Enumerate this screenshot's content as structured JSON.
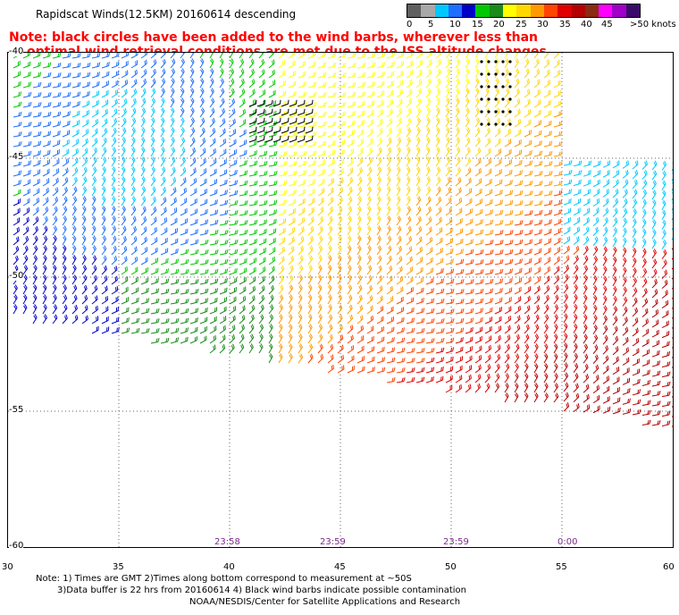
{
  "title": "Rapidscat Winds(12.5KM) 20160614 descending",
  "note": {
    "line1": "Note: black circles have been added to the wind barbs, wherever less than",
    "line2": "optimal wind retrieval conditions are met due to the ISS altitude changes."
  },
  "colorscale": {
    "labels": [
      "0",
      "5",
      "10",
      "15",
      "20",
      "25",
      "30",
      "35",
      "40",
      "45",
      ">50 knots"
    ],
    "colors": [
      "#5f5f5f",
      "#a8a8a8",
      "#00c8ff",
      "#1e6fff",
      "#0000c8",
      "#00c800",
      "#1a8a1a",
      "#ffff00",
      "#ffd800",
      "#ff9900",
      "#ff4400",
      "#e00000",
      "#b40000",
      "#8a2a10",
      "#ff00ff",
      "#a000c8",
      "#3a0a6a"
    ]
  },
  "axes": {
    "lon_labels": [
      "30",
      "35",
      "40",
      "45",
      "50",
      "55",
      "60"
    ],
    "lat_labels": [
      "-40",
      "-45",
      "-50",
      "-55",
      "-60"
    ]
  },
  "times": [
    "23:58",
    "23:59",
    "23:59",
    "0:00"
  ],
  "footer": {
    "line1": "Note: 1) Times are GMT 2)Times along bottom correspond to measurement at ~50S",
    "line2": "3)Data buffer is 22 hrs from 20160614 4) Black wind barbs indicate possible contamination",
    "line3": "NOAA/NESDIS/Center for Satellite Applications and Research"
  }
}
